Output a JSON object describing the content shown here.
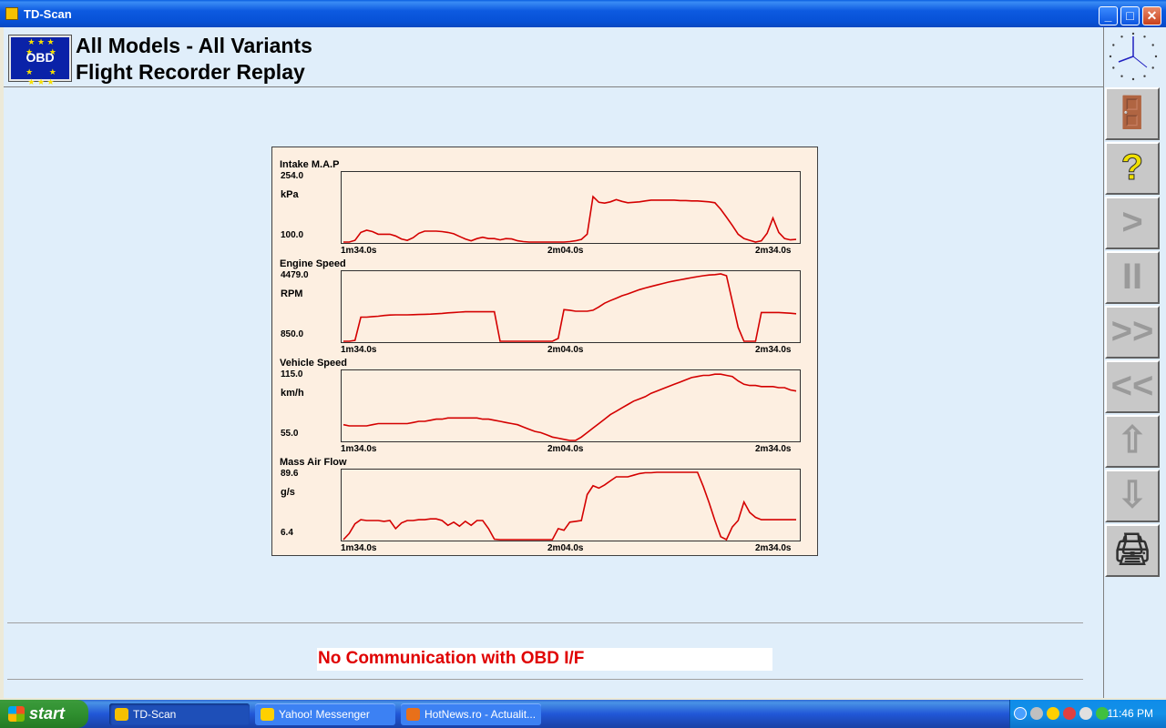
{
  "window": {
    "title": "TD-Scan",
    "minimize": "_",
    "maximize": "□",
    "close": "✕"
  },
  "header": {
    "logo_text": "OBD",
    "line1": "All Models - All Variants",
    "line2": "Flight Recorder Replay"
  },
  "graphs": [
    {
      "name": "Intake M.A.P",
      "max": "254.0",
      "unit": "kPa",
      "min": "100.0",
      "t_start": "1m34.0s",
      "t_mid": "2m04.0s",
      "t_end": "2m34.0s",
      "values": [
        100,
        100,
        104,
        122,
        127,
        124,
        118,
        118,
        118,
        114,
        107,
        104,
        110,
        120,
        125,
        125,
        125,
        124,
        122,
        119,
        113,
        107,
        103,
        108,
        111,
        108,
        108,
        105,
        108,
        107,
        103,
        101,
        100,
        100,
        100,
        100,
        100,
        100,
        100,
        101,
        103,
        106,
        118,
        204,
        191,
        189,
        192,
        197,
        193,
        190,
        191,
        192,
        194,
        196,
        196,
        196,
        196,
        196,
        195,
        195,
        194,
        194,
        193,
        192,
        190,
        175,
        157,
        138,
        118,
        108,
        104,
        100,
        103,
        120,
        155,
        122,
        108,
        105,
        106
      ],
      "ymin": 100,
      "ymax": 254
    },
    {
      "name": "Engine Speed",
      "max": "4479.0",
      "unit": "RPM",
      "min": "850.0",
      "t_start": "1m34.0s",
      "t_mid": "2m04.0s",
      "t_end": "2m34.0s",
      "values": [
        850,
        850,
        900,
        2150,
        2150,
        2180,
        2200,
        2240,
        2260,
        2270,
        2270,
        2270,
        2280,
        2290,
        2300,
        2310,
        2330,
        2350,
        2380,
        2400,
        2420,
        2440,
        2440,
        2440,
        2440,
        2440,
        2440,
        850,
        850,
        850,
        850,
        850,
        850,
        850,
        850,
        850,
        850,
        1000,
        2550,
        2520,
        2470,
        2470,
        2470,
        2520,
        2700,
        2900,
        3040,
        3170,
        3300,
        3400,
        3520,
        3630,
        3720,
        3800,
        3880,
        3960,
        4040,
        4100,
        4160,
        4220,
        4280,
        4330,
        4380,
        4420,
        4440,
        4479,
        4380,
        3000,
        1600,
        850,
        850,
        850,
        2400,
        2400,
        2400,
        2400,
        2380,
        2360,
        2330
      ],
      "ymin": 850,
      "ymax": 4479
    },
    {
      "name": "Vehicle Speed",
      "max": "115.0",
      "unit": "km/h",
      "min": "55.0",
      "t_start": "1m34.0s",
      "t_mid": "2m04.0s",
      "t_end": "2m34.0s",
      "values": [
        69,
        68,
        68,
        68,
        68,
        69,
        70,
        70,
        70,
        70,
        70,
        70,
        71,
        72,
        72,
        73,
        74,
        74,
        75,
        75,
        75,
        75,
        75,
        75,
        74,
        74,
        73,
        72,
        71,
        70,
        69,
        67,
        65,
        63,
        62,
        60,
        58,
        57,
        56,
        55,
        55,
        58,
        62,
        66,
        70,
        74,
        78,
        81,
        84,
        87,
        90,
        92,
        94,
        97,
        99,
        101,
        103,
        105,
        107,
        109,
        111,
        112,
        113,
        113,
        114,
        114,
        113,
        112,
        108,
        105,
        104,
        104,
        103,
        103,
        103,
        102,
        102,
        100,
        99
      ],
      "ymin": 55,
      "ymax": 115
    },
    {
      "name": "Mass Air Flow",
      "max": "89.6",
      "unit": "g/s",
      "min": "6.4",
      "t_start": "1m34.0s",
      "t_mid": "2m04.0s",
      "t_end": "2m34.0s",
      "values": [
        6.4,
        14,
        26,
        31,
        30,
        30,
        30,
        29,
        30,
        20,
        27,
        30,
        30,
        31,
        31,
        32,
        32,
        30,
        24,
        28,
        23,
        29,
        24,
        30,
        30,
        20,
        7,
        6.4,
        6.4,
        6.4,
        6.4,
        6.4,
        6.4,
        6.4,
        6.4,
        6.4,
        6.4,
        20,
        18,
        28,
        29,
        30,
        62,
        73,
        70,
        74,
        79,
        84,
        84,
        84,
        86,
        88,
        89,
        89,
        89.6,
        89.6,
        89.6,
        89.6,
        89.6,
        89.6,
        89.6,
        89.6,
        72,
        52,
        30,
        10,
        6.4,
        22,
        30,
        53,
        40,
        34,
        31,
        31,
        31,
        31,
        31,
        31,
        31
      ],
      "ymin": 6.4,
      "ymax": 89.6
    }
  ],
  "status": {
    "message": "No Communication with OBD I/F"
  },
  "toolbar": [
    {
      "name": "exit-button",
      "glyph": "🚪"
    },
    {
      "name": "help-button",
      "glyph": "?"
    },
    {
      "name": "play-button",
      "glyph": ">"
    },
    {
      "name": "pause-button",
      "glyph": "II"
    },
    {
      "name": "fast-forward-button",
      "glyph": ">>"
    },
    {
      "name": "rewind-button",
      "glyph": "<<"
    },
    {
      "name": "scroll-up-button",
      "glyph": "⇧"
    },
    {
      "name": "scroll-down-button",
      "glyph": "⇩"
    },
    {
      "name": "print-button",
      "glyph": "🖨"
    }
  ],
  "taskbar": {
    "start": "start",
    "tasks": [
      {
        "label": "TD-Scan",
        "color": "#f5c000",
        "active": true
      },
      {
        "label": "Yahoo! Messenger",
        "color": "#ffd000",
        "active": false
      },
      {
        "label": "HotNews.ro - Actualit...",
        "color": "#e8701a",
        "active": false
      }
    ],
    "time": "11:46 PM"
  },
  "colors": {
    "trace": "#d40000",
    "panel": "#fdefe1",
    "client": "#e0eefa",
    "status_text": "#e00000"
  }
}
